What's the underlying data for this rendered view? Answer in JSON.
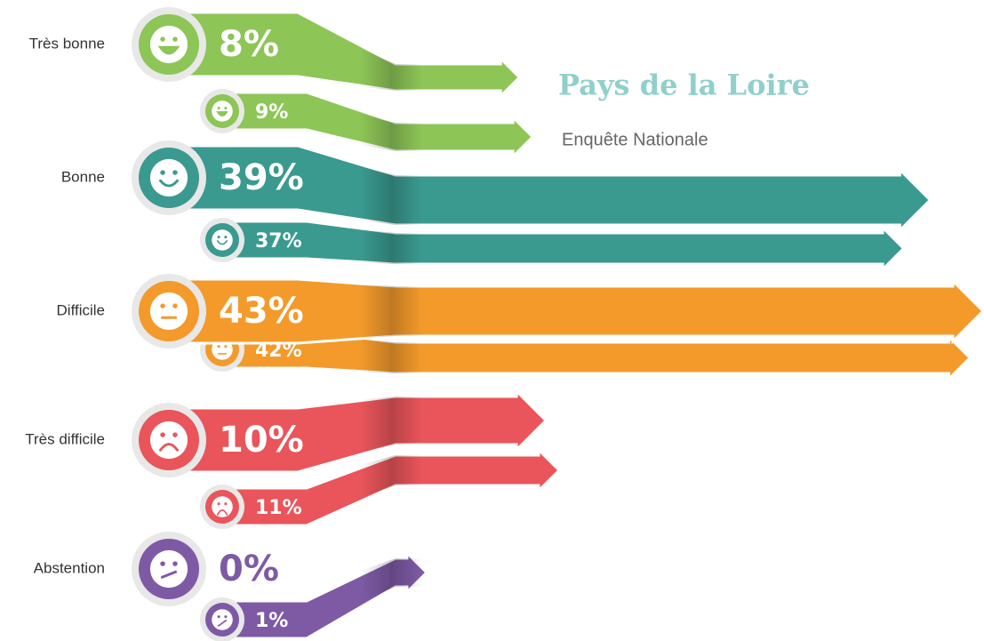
{
  "chart_data": {
    "type": "bar",
    "categories": [
      "Très bonne",
      "Bonne",
      "Difficile",
      "Très difficile",
      "Abstention"
    ],
    "colors": [
      "#8dc556",
      "#3a9a8f",
      "#f39a2b",
      "#e9555a",
      "#7e5aa5"
    ],
    "series": [
      {
        "name": "Pays de la Loire",
        "values": [
          8,
          39,
          43,
          10,
          0
        ],
        "value_labels": [
          "8%",
          "39%",
          "43%",
          "10%",
          "0%"
        ]
      },
      {
        "name": "Enquête Nationale",
        "values": [
          9,
          37,
          42,
          11,
          1
        ],
        "value_labels": [
          "9%",
          "37%",
          "42%",
          "11%",
          "1%"
        ]
      }
    ]
  }
}
